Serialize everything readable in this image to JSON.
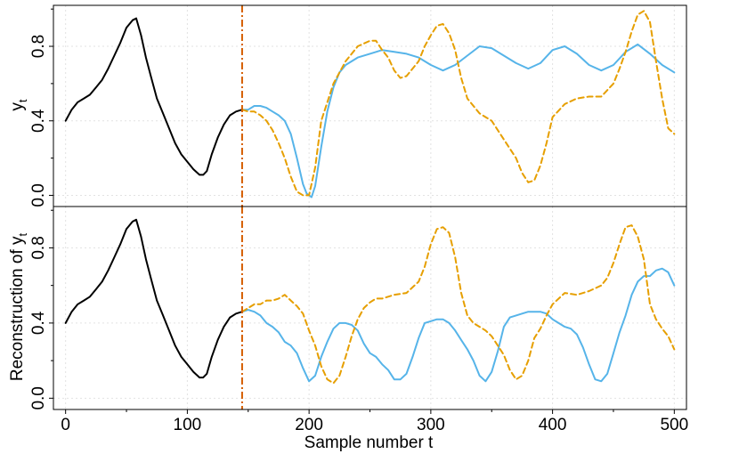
{
  "chart_data": [
    {
      "type": "line",
      "panel": "top",
      "xlabel": "",
      "ylabel": "y",
      "ylabel_sub": "t",
      "xlim": [
        -10,
        510
      ],
      "ylim": [
        -0.06,
        1.02
      ],
      "xticks": [
        0,
        100,
        200,
        300,
        400,
        500
      ],
      "yticks": [
        0.0,
        0.4,
        0.8
      ],
      "ytick_labels": [
        "0.0",
        "0.4",
        "0.8"
      ],
      "grid": true,
      "vline_x": 145,
      "vline_color": "#D55E00",
      "series": [
        {
          "style": "solid",
          "color": "#000000",
          "x": [
            0,
            5,
            10,
            15,
            20,
            25,
            30,
            35,
            40,
            45,
            50,
            55,
            58,
            62,
            66,
            70,
            75,
            80,
            85,
            90,
            95,
            100,
            105,
            110,
            113,
            116,
            120,
            125,
            130,
            135,
            140,
            145
          ],
          "y": [
            0.4,
            0.46,
            0.5,
            0.52,
            0.54,
            0.58,
            0.62,
            0.68,
            0.75,
            0.82,
            0.9,
            0.94,
            0.95,
            0.86,
            0.74,
            0.64,
            0.52,
            0.44,
            0.36,
            0.28,
            0.22,
            0.18,
            0.14,
            0.11,
            0.11,
            0.13,
            0.22,
            0.31,
            0.38,
            0.43,
            0.45,
            0.46
          ]
        },
        {
          "style": "solid",
          "color": "#56B4E9",
          "x": [
            145,
            150,
            155,
            160,
            165,
            170,
            175,
            180,
            185,
            190,
            195,
            198,
            202,
            205,
            210,
            215,
            220,
            225,
            230,
            240,
            250,
            260,
            270,
            280,
            290,
            300,
            310,
            320,
            330,
            340,
            350,
            360,
            370,
            380,
            390,
            400,
            410,
            420,
            430,
            440,
            450,
            460,
            470,
            480,
            490,
            500
          ],
          "y": [
            0.46,
            0.46,
            0.48,
            0.48,
            0.47,
            0.45,
            0.43,
            0.4,
            0.33,
            0.2,
            0.06,
            0.01,
            -0.01,
            0.05,
            0.26,
            0.45,
            0.58,
            0.66,
            0.7,
            0.74,
            0.76,
            0.78,
            0.77,
            0.76,
            0.74,
            0.7,
            0.67,
            0.7,
            0.75,
            0.8,
            0.79,
            0.75,
            0.71,
            0.68,
            0.71,
            0.78,
            0.8,
            0.76,
            0.7,
            0.67,
            0.7,
            0.77,
            0.81,
            0.76,
            0.7,
            0.66
          ]
        },
        {
          "style": "dashed",
          "color": "#E69F00",
          "x": [
            145,
            150,
            155,
            160,
            165,
            170,
            175,
            180,
            185,
            190,
            195,
            200,
            205,
            210,
            220,
            230,
            240,
            250,
            255,
            260,
            265,
            270,
            275,
            280,
            290,
            295,
            300,
            305,
            310,
            315,
            320,
            325,
            330,
            340,
            350,
            360,
            370,
            375,
            380,
            385,
            390,
            395,
            400,
            410,
            420,
            430,
            440,
            450,
            455,
            460,
            465,
            470,
            475,
            480,
            485,
            490,
            495,
            500
          ],
          "y": [
            0.46,
            0.45,
            0.45,
            0.43,
            0.4,
            0.35,
            0.28,
            0.2,
            0.1,
            0.02,
            0.0,
            0.0,
            0.15,
            0.4,
            0.6,
            0.72,
            0.8,
            0.83,
            0.83,
            0.78,
            0.74,
            0.67,
            0.63,
            0.64,
            0.72,
            0.8,
            0.86,
            0.91,
            0.92,
            0.87,
            0.78,
            0.63,
            0.52,
            0.44,
            0.4,
            0.3,
            0.2,
            0.12,
            0.07,
            0.08,
            0.16,
            0.28,
            0.42,
            0.49,
            0.52,
            0.53,
            0.53,
            0.6,
            0.68,
            0.77,
            0.88,
            0.97,
            0.99,
            0.93,
            0.72,
            0.52,
            0.36,
            0.33
          ]
        }
      ]
    },
    {
      "type": "line",
      "panel": "bottom",
      "xlabel": "Sample number t",
      "ylabel": "Reconstruction of y",
      "ylabel_sub": "t",
      "xlim": [
        -10,
        510
      ],
      "ylim": [
        -0.06,
        1.02
      ],
      "xticks": [
        0,
        100,
        200,
        300,
        400,
        500
      ],
      "xtick_labels": [
        "0",
        "100",
        "200",
        "300",
        "400",
        "500"
      ],
      "yticks": [
        0.0,
        0.4,
        0.8
      ],
      "ytick_labels": [
        "0.0",
        "0.4",
        "0.8"
      ],
      "grid": true,
      "vline_x": 145,
      "vline_color": "#D55E00",
      "series": [
        {
          "style": "solid",
          "color": "#000000",
          "x": [
            0,
            5,
            10,
            15,
            20,
            25,
            30,
            35,
            40,
            45,
            50,
            55,
            58,
            62,
            66,
            70,
            75,
            80,
            85,
            90,
            95,
            100,
            105,
            110,
            113,
            116,
            120,
            125,
            130,
            135,
            140,
            145
          ],
          "y": [
            0.4,
            0.46,
            0.5,
            0.52,
            0.54,
            0.58,
            0.62,
            0.68,
            0.75,
            0.82,
            0.9,
            0.94,
            0.95,
            0.86,
            0.74,
            0.64,
            0.52,
            0.44,
            0.36,
            0.28,
            0.22,
            0.18,
            0.14,
            0.11,
            0.11,
            0.13,
            0.22,
            0.31,
            0.38,
            0.43,
            0.45,
            0.46
          ]
        },
        {
          "style": "solid",
          "color": "#56B4E9",
          "x": [
            145,
            150,
            155,
            160,
            165,
            170,
            175,
            180,
            185,
            190,
            195,
            200,
            205,
            210,
            215,
            220,
            225,
            230,
            235,
            240,
            245,
            250,
            255,
            260,
            265,
            270,
            275,
            280,
            285,
            290,
            295,
            300,
            305,
            310,
            315,
            320,
            325,
            330,
            335,
            340,
            345,
            350,
            355,
            360,
            365,
            370,
            375,
            380,
            385,
            390,
            395,
            400,
            405,
            410,
            415,
            420,
            425,
            430,
            435,
            440,
            445,
            450,
            455,
            460,
            465,
            470,
            475,
            480,
            485,
            490,
            495,
            500
          ],
          "y": [
            0.46,
            0.47,
            0.46,
            0.44,
            0.4,
            0.38,
            0.35,
            0.3,
            0.28,
            0.24,
            0.16,
            0.09,
            0.12,
            0.22,
            0.3,
            0.37,
            0.4,
            0.4,
            0.39,
            0.36,
            0.29,
            0.24,
            0.22,
            0.18,
            0.15,
            0.1,
            0.1,
            0.13,
            0.22,
            0.32,
            0.4,
            0.41,
            0.42,
            0.42,
            0.4,
            0.36,
            0.31,
            0.26,
            0.2,
            0.12,
            0.09,
            0.14,
            0.25,
            0.38,
            0.43,
            0.44,
            0.45,
            0.46,
            0.46,
            0.46,
            0.45,
            0.42,
            0.4,
            0.38,
            0.37,
            0.34,
            0.27,
            0.18,
            0.1,
            0.09,
            0.13,
            0.24,
            0.35,
            0.44,
            0.55,
            0.62,
            0.65,
            0.65,
            0.68,
            0.69,
            0.67,
            0.6
          ]
        },
        {
          "style": "dashed",
          "color": "#E69F00",
          "x": [
            145,
            150,
            155,
            160,
            165,
            170,
            175,
            180,
            185,
            190,
            195,
            200,
            205,
            210,
            215,
            220,
            225,
            230,
            235,
            240,
            245,
            250,
            255,
            260,
            270,
            280,
            290,
            295,
            300,
            305,
            310,
            315,
            320,
            325,
            330,
            335,
            340,
            345,
            350,
            355,
            360,
            365,
            370,
            375,
            380,
            385,
            390,
            395,
            400,
            410,
            420,
            430,
            440,
            445,
            450,
            455,
            460,
            465,
            470,
            475,
            480,
            485,
            490,
            495,
            500
          ],
          "y": [
            0.46,
            0.48,
            0.5,
            0.5,
            0.52,
            0.52,
            0.53,
            0.55,
            0.52,
            0.49,
            0.45,
            0.36,
            0.28,
            0.17,
            0.1,
            0.08,
            0.12,
            0.22,
            0.33,
            0.42,
            0.48,
            0.51,
            0.53,
            0.53,
            0.55,
            0.56,
            0.62,
            0.7,
            0.82,
            0.9,
            0.91,
            0.88,
            0.75,
            0.56,
            0.44,
            0.4,
            0.38,
            0.36,
            0.33,
            0.28,
            0.23,
            0.15,
            0.1,
            0.12,
            0.2,
            0.32,
            0.37,
            0.44,
            0.5,
            0.56,
            0.55,
            0.57,
            0.6,
            0.64,
            0.72,
            0.82,
            0.91,
            0.92,
            0.86,
            0.74,
            0.5,
            0.42,
            0.37,
            0.33,
            0.26
          ]
        }
      ]
    }
  ]
}
